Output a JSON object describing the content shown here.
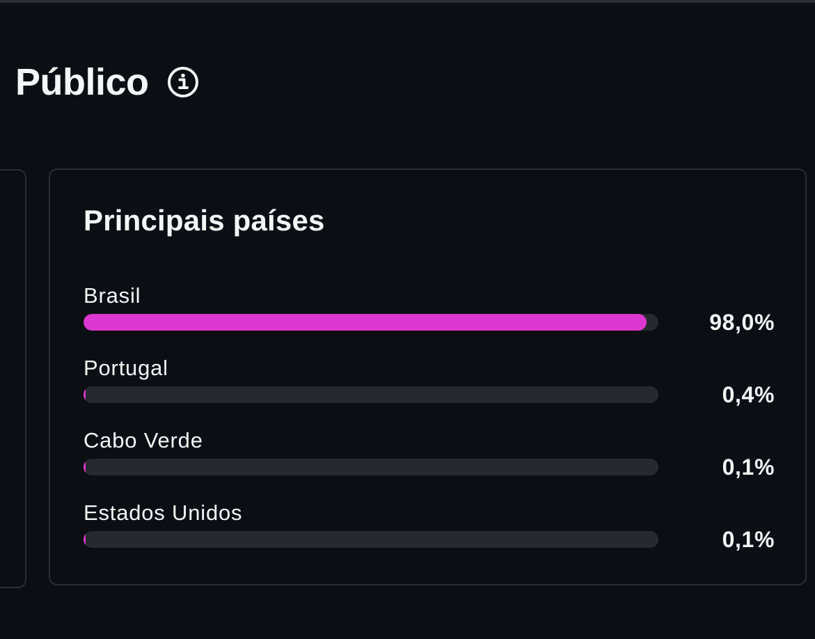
{
  "section": {
    "title": "Público",
    "info_icon": "info-icon"
  },
  "card": {
    "title": "Principais países",
    "accent_color": "#dc37d0",
    "track_color": "#26292f",
    "countries": [
      {
        "name": "Brasil",
        "percent_label": "98,0%",
        "share": 98.0
      },
      {
        "name": "Portugal",
        "percent_label": "0,4%",
        "share": 0.4
      },
      {
        "name": "Cabo Verde",
        "percent_label": "0,1%",
        "share": 0.1
      },
      {
        "name": "Estados Unidos",
        "percent_label": "0,1%",
        "share": 0.1
      }
    ]
  }
}
